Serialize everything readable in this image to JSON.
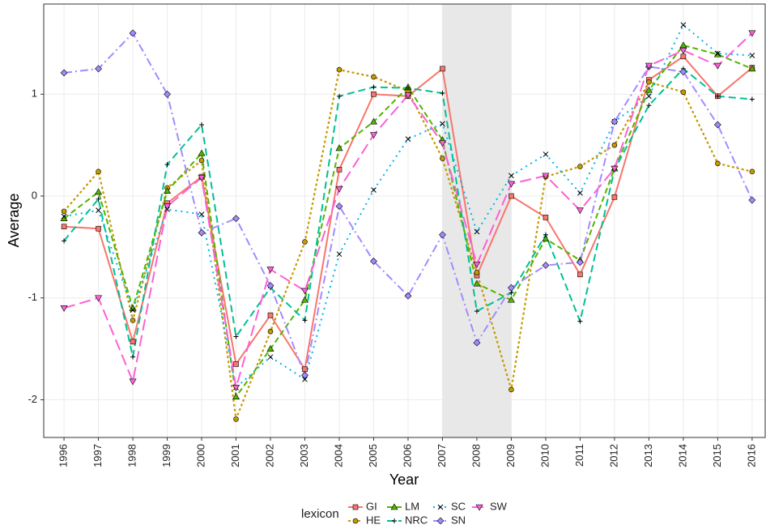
{
  "chart_data": {
    "type": "line",
    "x": [
      1996,
      1997,
      1998,
      1999,
      2000,
      2001,
      2002,
      2003,
      2004,
      2005,
      2006,
      2007,
      2008,
      2009,
      2010,
      2011,
      2012,
      2013,
      2014,
      2015,
      2016
    ],
    "xlabel": "Year",
    "ylabel": "Average",
    "xlim": [
      1995.41,
      2016.38
    ],
    "ylim": [
      -2.37,
      1.885
    ],
    "xticks": [
      1996,
      1997,
      1998,
      1999,
      2000,
      2001,
      2002,
      2003,
      2004,
      2005,
      2006,
      2007,
      2008,
      2009,
      2010,
      2011,
      2012,
      2013,
      2014,
      2015,
      2016
    ],
    "yticks": [
      -2,
      -1,
      0,
      1
    ],
    "grid": true,
    "shaded_x": [
      2007,
      2009
    ],
    "legend_title": "lexicon",
    "legend_position": "bottom",
    "series": [
      {
        "name": "GI",
        "color": "#F8766D",
        "values": [
          -0.3,
          -0.32,
          -1.43,
          -0.07,
          0.19,
          -1.65,
          -1.17,
          -1.7,
          0.26,
          1.0,
          0.98,
          1.25,
          -0.78,
          0.0,
          -0.21,
          -0.77,
          -0.01,
          1.14,
          1.37,
          0.98,
          1.26
        ]
      },
      {
        "name": "HE",
        "color": "#C49A00",
        "values": [
          -0.15,
          0.24,
          -1.22,
          0.08,
          0.35,
          -2.19,
          -1.33,
          -0.45,
          1.24,
          1.17,
          1.03,
          0.37,
          -0.75,
          -1.9,
          0.19,
          0.29,
          0.5,
          1.12,
          1.02,
          0.32,
          0.24
        ]
      },
      {
        "name": "LM",
        "color": "#53B400",
        "values": [
          -0.22,
          0.04,
          -1.1,
          0.05,
          0.42,
          -1.97,
          -1.5,
          -1.02,
          0.47,
          0.73,
          1.07,
          0.55,
          -0.86,
          -1.02,
          -0.42,
          -0.63,
          0.27,
          1.04,
          1.48,
          1.39,
          1.25
        ]
      },
      {
        "name": "NRC",
        "color": "#00C094",
        "values": [
          -0.44,
          -0.03,
          -1.58,
          0.31,
          0.7,
          -1.38,
          -0.9,
          -1.22,
          0.98,
          1.07,
          1.06,
          1.01,
          -1.13,
          -0.95,
          -0.38,
          -1.23,
          0.26,
          0.89,
          1.25,
          0.98,
          0.95
        ]
      },
      {
        "name": "SC",
        "color": "#00B6EB",
        "values": [
          -0.2,
          -0.14,
          -1.12,
          -0.13,
          -0.18,
          -1.88,
          -1.58,
          -1.8,
          -0.57,
          0.06,
          0.56,
          0.71,
          -0.35,
          0.2,
          0.41,
          0.03,
          0.73,
          0.98,
          1.68,
          1.4,
          1.38
        ]
      },
      {
        "name": "SN",
        "color": "#A58AFF",
        "values": [
          1.21,
          1.25,
          1.6,
          1.0,
          -0.36,
          -0.22,
          -0.88,
          -1.76,
          -0.1,
          -0.64,
          -0.98,
          -0.38,
          -1.44,
          -0.9,
          -0.68,
          -0.65,
          0.73,
          1.27,
          1.22,
          0.7,
          -0.04
        ]
      },
      {
        "name": "SW",
        "color": "#FB61D7",
        "values": [
          -1.1,
          -1.0,
          -1.82,
          -0.1,
          0.18,
          -1.88,
          -0.72,
          -0.93,
          0.07,
          0.6,
          0.99,
          0.52,
          -0.67,
          0.12,
          0.2,
          -0.14,
          0.27,
          1.28,
          1.43,
          1.28,
          1.6
        ]
      }
    ]
  }
}
